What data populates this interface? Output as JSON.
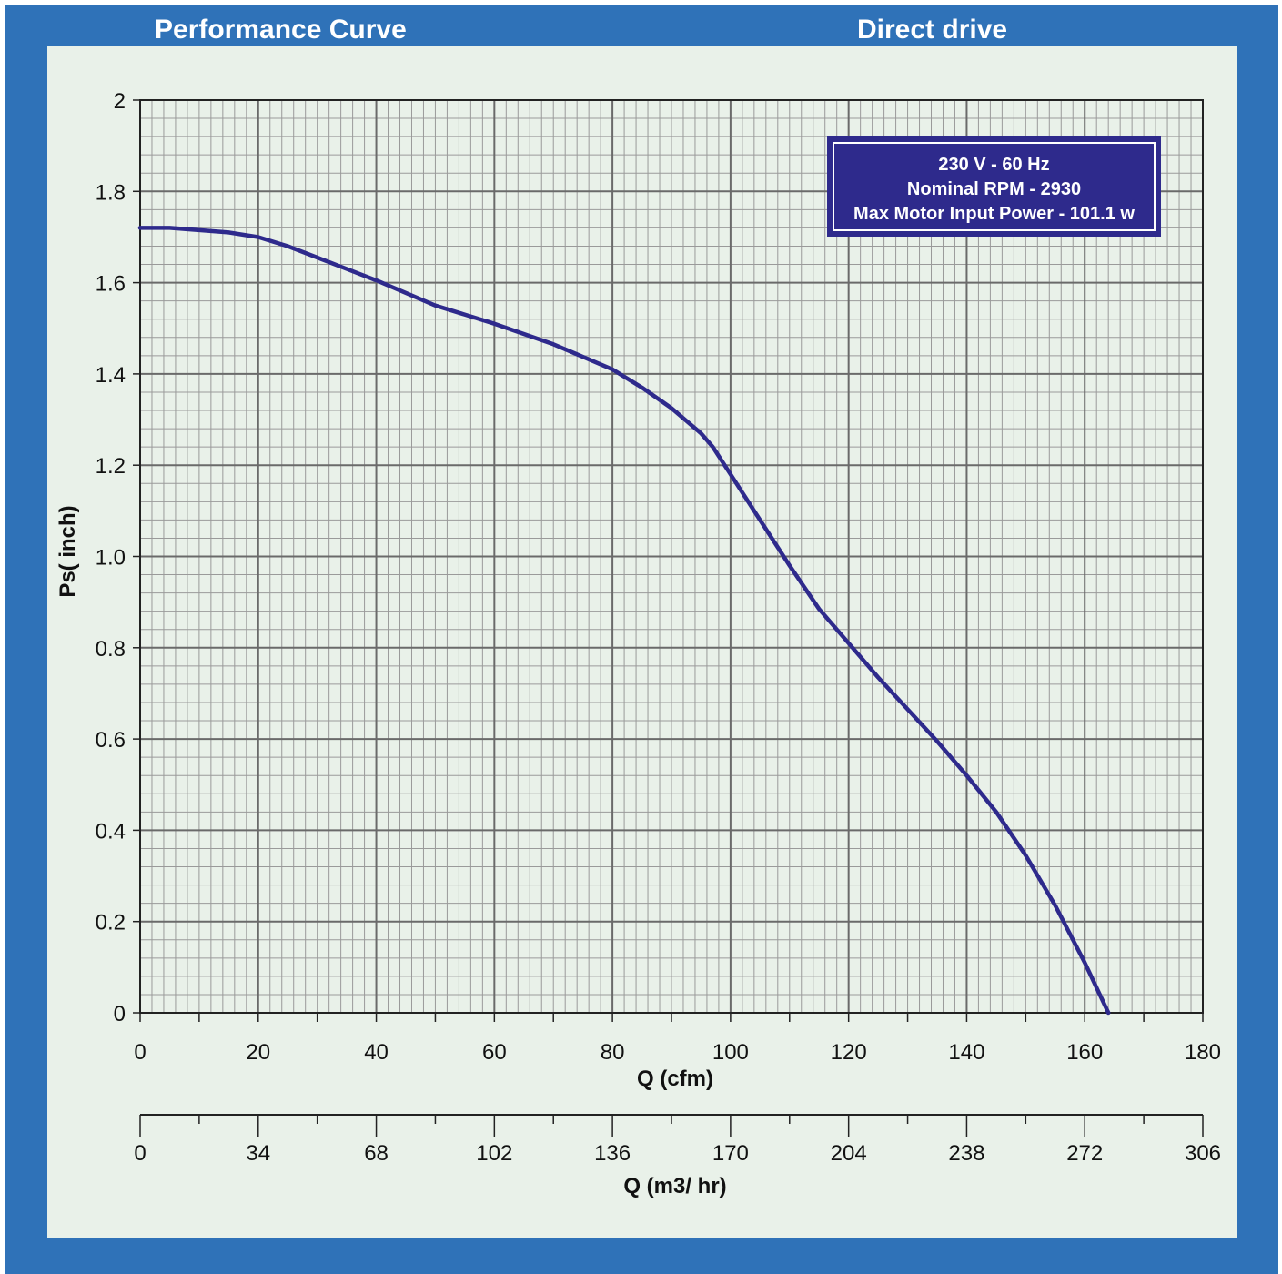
{
  "header": {
    "left_title": "Performance Curve",
    "right_title": "Direct drive"
  },
  "info_box": {
    "lines": [
      "230 V - 60 Hz",
      "Nominal RPM - 2930",
      "Max Motor Input Power - 101.1 w"
    ]
  },
  "colors": {
    "frame": "#2f72b8",
    "panel": "#e9f1e9",
    "grid_major": "#6a6a6a",
    "grid_minor": "#9a9a9a",
    "curve": "#2e2a8c",
    "info_box": "#2e2a8c"
  },
  "chart_data": {
    "type": "line",
    "title": "Performance Curve",
    "subtitle": "Direct drive",
    "xlabel": "Q (cfm)",
    "x2label": "Q (m3/ hr)",
    "ylabel": "Ps( inch)",
    "xlim": [
      0,
      180
    ],
    "ylim": [
      0,
      2
    ],
    "x_ticks": [
      "0",
      "20",
      "40",
      "60",
      "80",
      "100",
      "120",
      "140",
      "160",
      "180"
    ],
    "x2_ticks": [
      "0",
      "34",
      "68",
      "102",
      "136",
      "170",
      "204",
      "238",
      "272",
      "306"
    ],
    "y_ticks": [
      "0",
      "0.2",
      "0.4",
      "0.6",
      "0.8",
      "1.0",
      "1.2",
      "1.4",
      "1.6",
      "1.8",
      "2"
    ],
    "grid": true,
    "legend": "none",
    "series": [
      {
        "x": [
          0,
          5,
          10,
          15,
          20,
          25,
          30,
          40,
          50,
          60,
          70,
          80,
          85,
          90,
          95,
          97,
          100,
          105,
          110,
          115,
          120,
          125,
          130,
          135,
          140,
          145,
          150,
          155,
          160,
          164
        ],
        "y": [
          1.72,
          1.72,
          1.715,
          1.71,
          1.7,
          1.68,
          1.655,
          1.605,
          1.55,
          1.51,
          1.465,
          1.41,
          1.37,
          1.325,
          1.27,
          1.24,
          1.18,
          1.08,
          0.98,
          0.885,
          0.81,
          0.735,
          0.665,
          0.595,
          0.52,
          0.44,
          0.345,
          0.235,
          0.11,
          0.0
        ]
      }
    ]
  }
}
